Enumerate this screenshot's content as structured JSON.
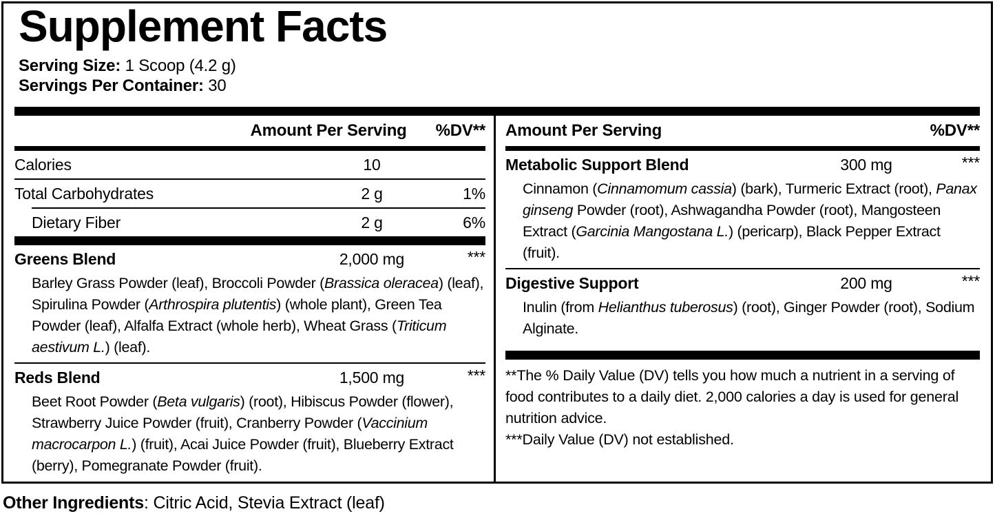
{
  "title": "Supplement Facts",
  "serving": {
    "size_label": "Serving Size:",
    "size_value": " 1 Scoop (4.2 g)",
    "servings_label": "Servings Per Container:",
    "servings_value": " 30"
  },
  "columns_header": {
    "amount": "Amount Per Serving",
    "dv": "%DV**"
  },
  "left": {
    "rows": [
      {
        "name": "Calories",
        "amount": "10",
        "dv": ""
      },
      {
        "name": "Total Carbohydrates",
        "amount": "2 g",
        "dv": "1%"
      },
      {
        "name": "Dietary Fiber",
        "amount": "2 g",
        "dv": "6%"
      }
    ],
    "blends": [
      {
        "name": "Greens Blend",
        "amount": "2,000 mg",
        "dv": "***",
        "description": [
          {
            "t": "Barley Grass Powder (leaf), Broccoli Powder (",
            "i": false
          },
          {
            "t": "Brassica oleracea",
            "i": true
          },
          {
            "t": ") (leaf), Spirulina Powder (",
            "i": false
          },
          {
            "t": "Arthrospira plutentis",
            "i": true
          },
          {
            "t": ") (whole plant), Green Tea Powder (leaf), Alfalfa Extract (whole herb), Wheat Grass (",
            "i": false
          },
          {
            "t": "Triticum aestivum L.",
            "i": true
          },
          {
            "t": ") (leaf).",
            "i": false
          }
        ]
      },
      {
        "name": "Reds Blend",
        "amount": "1,500 mg",
        "dv": "***",
        "description": [
          {
            "t": "Beet Root Powder (",
            "i": false
          },
          {
            "t": "Beta vulgaris",
            "i": true
          },
          {
            "t": ") (root), Hibiscus Powder (flower), Strawberry Juice Powder (fruit), Cranberry Powder (",
            "i": false
          },
          {
            "t": "Vaccinium macrocarpon L.",
            "i": true
          },
          {
            "t": ") (fruit), Acai Juice Powder (fruit), Blueberry Extract (berry), Pomegranate Powder (fruit).",
            "i": false
          }
        ]
      }
    ]
  },
  "right": {
    "blends": [
      {
        "name": "Metabolic Support Blend",
        "amount": "300 mg",
        "dv": "***",
        "description": [
          {
            "t": "Cinnamon (",
            "i": false
          },
          {
            "t": "Cinnamomum cassia",
            "i": true
          },
          {
            "t": ") (bark), Turmeric Extract (root), ",
            "i": false
          },
          {
            "t": "Panax ginseng",
            "i": true
          },
          {
            "t": " Powder (root), Ashwagandha Powder (root), Mangosteen Extract (",
            "i": false
          },
          {
            "t": "Garcinia Mangostana L.",
            "i": true
          },
          {
            "t": ") (pericarp), Black Pepper Extract (fruit).",
            "i": false
          }
        ]
      },
      {
        "name": "Digestive Support",
        "amount": "200 mg",
        "dv": "***",
        "description": [
          {
            "t": "Inulin (from ",
            "i": false
          },
          {
            "t": "Helianthus tuberosus",
            "i": true
          },
          {
            "t": ") (root), Ginger Powder (root), Sodium Alginate.",
            "i": false
          }
        ]
      }
    ],
    "footnotes": [
      "**The % Daily Value (DV) tells you how much a nutrient in a serving of food contributes to a daily diet. 2,000 calories a day is used for general nutrition advice.",
      "***Daily Value (DV) not established."
    ]
  },
  "other_ingredients": {
    "label": "Other Ingredients",
    "value": ": Citric Acid, Stevia Extract (leaf)"
  }
}
